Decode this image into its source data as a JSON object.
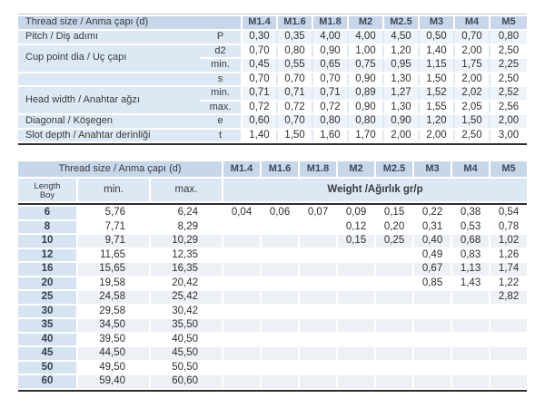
{
  "colors": {
    "header_blue": "#c6d7ea",
    "panel_blue": "#dce8f4",
    "length_blue": "#d6e3f2",
    "gap_blue": "#dfe9f3",
    "stripe_blue": "#eef3f9",
    "stripe_gray": "#edf0f4",
    "rule_dark": "#2e2e2e",
    "rule_light": "#c6c6c6",
    "text": "#3a3a3a"
  },
  "table1": {
    "title_label": "Thread size / Anma çapı (d)",
    "sizes": [
      "M1.4",
      "M1.6",
      "M1.8",
      "M2",
      "M2.5",
      "M3",
      "M4",
      "M5"
    ],
    "groups": [
      {
        "label": "Pitch / Diş adımı",
        "rows": [
          {
            "sub": "P",
            "values": [
              "0,30",
              "0,35",
              "4,00",
              "4,00",
              "4,50",
              "0,50",
              "0,70",
              "0,80"
            ]
          }
        ]
      },
      {
        "label": "Cup point dia / Uç çapı",
        "rows": [
          {
            "sub": "d2",
            "values": [
              "0,70",
              "0,80",
              "0,90",
              "1,00",
              "1,20",
              "1,40",
              "2,00",
              "2,50"
            ]
          },
          {
            "sub": "min.",
            "values": [
              "0,45",
              "0,55",
              "0,65",
              "0,75",
              "0,95",
              "1,15",
              "1,75",
              "2,25"
            ]
          }
        ]
      },
      {
        "label": "",
        "rows": [
          {
            "sub": "s",
            "values": [
              "0,70",
              "0,70",
              "0,70",
              "0,90",
              "1,30",
              "1,50",
              "2,00",
              "2,50"
            ]
          }
        ]
      },
      {
        "label": "Head width / Anahtar ağzı",
        "rows": [
          {
            "sub": "min.",
            "values": [
              "0,71",
              "0,71",
              "0,71",
              "0,89",
              "1,27",
              "1,52",
              "2,02",
              "2,52"
            ]
          },
          {
            "sub": "max.",
            "values": [
              "0,72",
              "0,72",
              "0,72",
              "0,90",
              "1,30",
              "1,55",
              "2,05",
              "2,56"
            ]
          }
        ]
      },
      {
        "label": "Diagonal / Köşegen",
        "rows": [
          {
            "sub": "e",
            "values": [
              "0,60",
              "0,70",
              "0,80",
              "0,80",
              "0,90",
              "1,20",
              "1,50",
              "2,00"
            ]
          }
        ]
      },
      {
        "label": "Slot depth / Anahtar derinliği",
        "rows": [
          {
            "sub": "t",
            "values": [
              "1,40",
              "1,50",
              "1,60",
              "1,70",
              "2,00",
              "2,00",
              "2,50",
              "3,00"
            ]
          }
        ]
      }
    ]
  },
  "table2": {
    "title_label": "Thread size / Anma çapı (d)",
    "sizes": [
      "M1.4",
      "M1.6",
      "M1.8",
      "M2",
      "M2.5",
      "M3",
      "M4",
      "M5"
    ],
    "length_label_line1": "Length",
    "length_label_line2": "Boy",
    "min_label": "min.",
    "max_label": "max.",
    "weight_label": "Weight /Ağırlık gr/p",
    "rows": [
      {
        "length": "6",
        "min": "5,76",
        "max": "6,24",
        "weights": [
          "0,04",
          "0,06",
          "0,07",
          "0,09",
          "0,15",
          "0,22",
          "0,38",
          "0,54"
        ]
      },
      {
        "length": "8",
        "min": "7,71",
        "max": "8,29",
        "weights": [
          "",
          "",
          "",
          "0,12",
          "0,20",
          "0,31",
          "0,53",
          "0,78"
        ]
      },
      {
        "length": "10",
        "min": "9,71",
        "max": "10,29",
        "weights": [
          "",
          "",
          "",
          "0,15",
          "0,25",
          "0,40",
          "0,68",
          "1,02"
        ]
      },
      {
        "length": "12",
        "min": "11,65",
        "max": "12,35",
        "weights": [
          "",
          "",
          "",
          "",
          "",
          "0,49",
          "0,83",
          "1,26"
        ]
      },
      {
        "length": "16",
        "min": "15,65",
        "max": "16,35",
        "weights": [
          "",
          "",
          "",
          "",
          "",
          "0,67",
          "1,13",
          "1,74"
        ]
      },
      {
        "length": "20",
        "min": "19,58",
        "max": "20,42",
        "weights": [
          "",
          "",
          "",
          "",
          "",
          "0,85",
          "1,43",
          "1,22"
        ]
      },
      {
        "length": "25",
        "min": "24,58",
        "max": "25,42",
        "weights": [
          "",
          "",
          "",
          "",
          "",
          "",
          "",
          "2,82"
        ]
      },
      {
        "length": "30",
        "min": "29,58",
        "max": "30,42",
        "weights": [
          "",
          "",
          "",
          "",
          "",
          "",
          "",
          ""
        ]
      },
      {
        "length": "35",
        "min": "34,50",
        "max": "35,50",
        "weights": [
          "",
          "",
          "",
          "",
          "",
          "",
          "",
          ""
        ]
      },
      {
        "length": "40",
        "min": "39,50",
        "max": "40,50",
        "weights": [
          "",
          "",
          "",
          "",
          "",
          "",
          "",
          ""
        ]
      },
      {
        "length": "45",
        "min": "44,50",
        "max": "45,50",
        "weights": [
          "",
          "",
          "",
          "",
          "",
          "",
          "",
          ""
        ]
      },
      {
        "length": "50",
        "min": "49,50",
        "max": "50,50",
        "weights": [
          "",
          "",
          "",
          "",
          "",
          "",
          "",
          ""
        ]
      },
      {
        "length": "60",
        "min": "59,40",
        "max": "60,60",
        "weights": [
          "",
          "",
          "",
          "",
          "",
          "",
          "",
          ""
        ]
      }
    ]
  }
}
